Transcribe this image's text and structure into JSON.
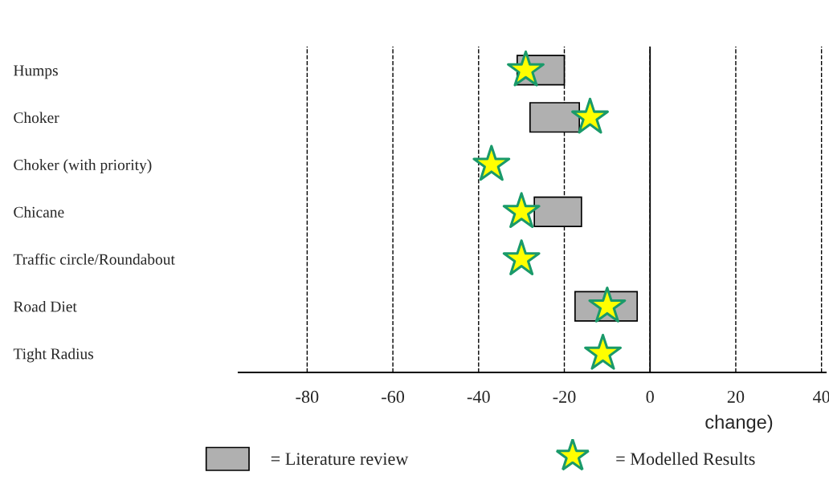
{
  "chart_data": {
    "type": "bar",
    "orientation": "horizontal",
    "xlabel": "change)",
    "categories": [
      "Humps",
      "Choker",
      "Choker (with priority)",
      "Chicane",
      "Traffic circle/Roundabout",
      "Road Diet",
      "Tight Radius"
    ],
    "series": [
      {
        "name": "= Literature review",
        "color": "#b0b0b0",
        "base": [
          -31,
          -28,
          null,
          -27,
          null,
          -17.5,
          null
        ],
        "values": [
          11,
          11.5,
          null,
          11,
          null,
          14.5,
          null
        ]
      },
      {
        "name": "= Modelled Results",
        "type": "scatter",
        "marker": "star",
        "color": "#ffff00",
        "values": [
          -29,
          -14,
          -37,
          -30,
          -30,
          -10,
          -11
        ]
      }
    ],
    "xlim": [
      -96,
      41
    ],
    "xticks": [
      -80,
      -60,
      -40,
      -20,
      0,
      20,
      40
    ],
    "grid": "x",
    "line_style": "dashed",
    "ref_lines": [
      {
        "axis": "x",
        "value": 0,
        "line_style": "solid",
        "color": "#000000"
      }
    ],
    "legend": "bottom"
  }
}
